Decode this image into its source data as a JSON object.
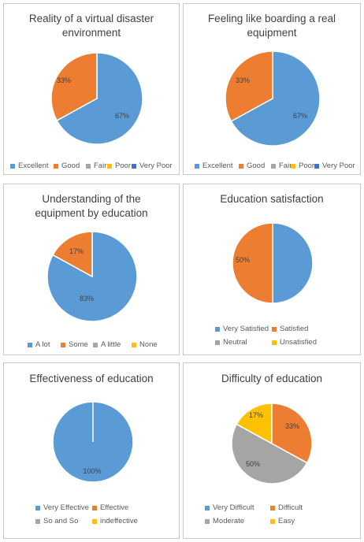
{
  "colors": {
    "blue": "#5B9BD5",
    "orange": "#ED7D31",
    "gray": "#A5A5A5",
    "yellow": "#FFC000",
    "navy": "#4472C4"
  },
  "chart_data": [
    {
      "type": "pie",
      "title_lines": [
        "Reality of a virtual disaster",
        "environment"
      ],
      "categories": [
        "Excellent",
        "Good",
        "Fair",
        "Poor",
        "Very Poor"
      ],
      "values": [
        67,
        33,
        0,
        0,
        0
      ],
      "labels": [
        "67%",
        "33%",
        "",
        "",
        ""
      ],
      "colors": [
        "#5B9BD5",
        "#ED7D31",
        "#A5A5A5",
        "#FFC000",
        "#4472C4"
      ],
      "legend": "bottom"
    },
    {
      "type": "pie",
      "title_lines": [
        "Feeling like boarding a real",
        "equipment"
      ],
      "categories": [
        "Excellent",
        "Good",
        "Fair",
        "Poor",
        "Very Poor"
      ],
      "values": [
        67,
        33,
        0,
        0,
        0
      ],
      "labels": [
        "67%",
        "33%",
        "",
        "",
        ""
      ],
      "colors": [
        "#5B9BD5",
        "#ED7D31",
        "#A5A5A5",
        "#FFC000",
        "#4472C4"
      ],
      "legend": "bottom"
    },
    {
      "type": "pie",
      "title_lines": [
        "Understanding of the",
        "equipment by education"
      ],
      "categories": [
        "A lot",
        "Some",
        "A little",
        "None"
      ],
      "values": [
        83,
        17,
        0,
        0
      ],
      "labels": [
        "83%",
        "17%",
        "",
        ""
      ],
      "colors": [
        "#5B9BD5",
        "#ED7D31",
        "#A5A5A5",
        "#FFC000"
      ],
      "legend": "bottom"
    },
    {
      "type": "pie",
      "title_lines": [
        "Education satisfaction"
      ],
      "categories": [
        "Very Satisfied",
        "Satisfied",
        "Neutral",
        "Unsatisfied"
      ],
      "values": [
        50,
        50,
        0,
        0
      ],
      "labels": [
        "",
        "50%",
        "",
        ""
      ],
      "colors": [
        "#5B9BD5",
        "#ED7D31",
        "#A5A5A5",
        "#FFC000"
      ],
      "legend": "bottom"
    },
    {
      "type": "pie",
      "title_lines": [
        "Effectiveness of education"
      ],
      "categories": [
        "Very Effective",
        "Effective",
        "So and So",
        "indeffective"
      ],
      "values": [
        100,
        0,
        0,
        0
      ],
      "labels": [
        "100%",
        "",
        "",
        ""
      ],
      "colors": [
        "#5B9BD5",
        "#ED7D31",
        "#A5A5A5",
        "#FFC000"
      ],
      "legend": "bottom"
    },
    {
      "type": "pie",
      "title_lines": [
        "Difficulty of education"
      ],
      "categories": [
        "Very Difficult",
        "Difficult",
        "Moderate",
        "Easy"
      ],
      "values": [
        0,
        33,
        50,
        17
      ],
      "labels": [
        "",
        "33%",
        "50%",
        "17%"
      ],
      "colors": [
        "#5B9BD5",
        "#ED7D31",
        "#A5A5A5",
        "#FFC000"
      ],
      "legend": "bottom"
    }
  ]
}
